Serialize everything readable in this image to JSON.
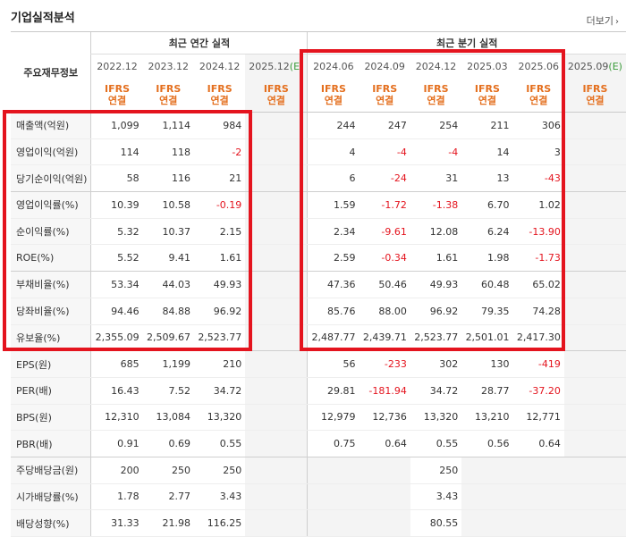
{
  "title": "기업실적분석",
  "more_label": "더보기",
  "header": {
    "row_header": "주요재무정보",
    "annual_group": "최근 연간 실적",
    "quarter_group": "최근 분기 실적",
    "periods": [
      "2022.12",
      "2023.12",
      "2024.12",
      "2025.12(E)",
      "2024.06",
      "2024.09",
      "2024.12",
      "2025.03",
      "2025.06",
      "2025.09(E)"
    ],
    "basis_line1": "IFRS",
    "basis_line2": "연결"
  },
  "rows": [
    {
      "label": "매출액(억원)",
      "values": [
        "1,099",
        "1,114",
        "984",
        "",
        "244",
        "247",
        "254",
        "211",
        "306",
        ""
      ]
    },
    {
      "label": "영업이익(억원)",
      "values": [
        "114",
        "118",
        "-2",
        "",
        "4",
        "-4",
        "-4",
        "14",
        "3",
        ""
      ]
    },
    {
      "label": "당기순이익(억원)",
      "values": [
        "58",
        "116",
        "21",
        "",
        "6",
        "-24",
        "31",
        "13",
        "-43",
        ""
      ]
    },
    {
      "label": "영업이익률(%)",
      "values": [
        "10.39",
        "10.58",
        "-0.19",
        "",
        "1.59",
        "-1.72",
        "-1.38",
        "6.70",
        "1.02",
        ""
      ]
    },
    {
      "label": "순이익률(%)",
      "values": [
        "5.32",
        "10.37",
        "2.15",
        "",
        "2.34",
        "-9.61",
        "12.08",
        "6.24",
        "-13.90",
        ""
      ]
    },
    {
      "label": "ROE(%)",
      "values": [
        "5.52",
        "9.41",
        "1.61",
        "",
        "2.59",
        "-0.34",
        "1.61",
        "1.98",
        "-1.73",
        ""
      ]
    },
    {
      "label": "부채비율(%)",
      "values": [
        "53.34",
        "44.03",
        "49.93",
        "",
        "47.36",
        "50.46",
        "49.93",
        "60.48",
        "65.02",
        ""
      ]
    },
    {
      "label": "당좌비율(%)",
      "values": [
        "94.46",
        "84.88",
        "96.92",
        "",
        "85.76",
        "88.00",
        "96.92",
        "79.35",
        "74.28",
        ""
      ]
    },
    {
      "label": "유보율(%)",
      "values": [
        "2,355.09",
        "2,509.67",
        "2,523.77",
        "",
        "2,487.77",
        "2,439.71",
        "2,523.77",
        "2,501.01",
        "2,417.30",
        ""
      ]
    },
    {
      "label": "EPS(원)",
      "values": [
        "685",
        "1,199",
        "210",
        "",
        "56",
        "-233",
        "302",
        "130",
        "-419",
        ""
      ]
    },
    {
      "label": "PER(배)",
      "values": [
        "16.43",
        "7.52",
        "34.72",
        "",
        "29.81",
        "-181.94",
        "34.72",
        "28.77",
        "-37.20",
        ""
      ]
    },
    {
      "label": "BPS(원)",
      "values": [
        "12,310",
        "13,084",
        "13,320",
        "",
        "12,979",
        "12,736",
        "13,320",
        "13,210",
        "12,771",
        ""
      ]
    },
    {
      "label": "PBR(배)",
      "values": [
        "0.91",
        "0.69",
        "0.55",
        "",
        "0.75",
        "0.64",
        "0.55",
        "0.56",
        "0.64",
        ""
      ]
    },
    {
      "label": "주당배당금(원)",
      "values": [
        "200",
        "250",
        "250",
        "",
        "",
        "",
        "250",
        "",
        "",
        ""
      ]
    },
    {
      "label": "시가배당률(%)",
      "values": [
        "1.78",
        "2.77",
        "3.43",
        "",
        "",
        "",
        "3.43",
        "",
        "",
        ""
      ]
    },
    {
      "label": "배당성향(%)",
      "values": [
        "31.33",
        "21.98",
        "116.25",
        "",
        "",
        "",
        "80.55",
        "",
        "",
        ""
      ]
    }
  ],
  "colors": {
    "negative": "#e4141e",
    "ifrs": "#e46f1e",
    "estimate": "#3a9b3a",
    "highlight_box": "#e4141e"
  }
}
